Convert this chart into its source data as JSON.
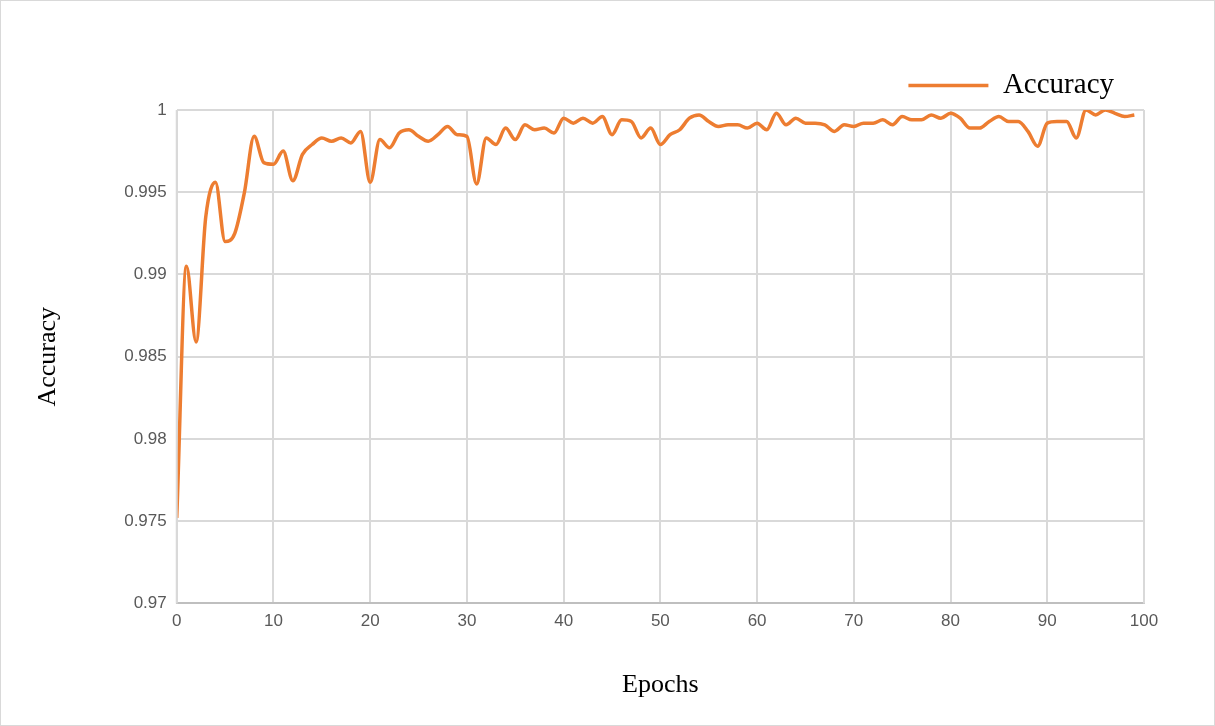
{
  "chart_data": {
    "type": "line",
    "xlabel": "Epochs",
    "ylabel": "Accuracy",
    "x": [
      0,
      1,
      2,
      3,
      4,
      5,
      6,
      7,
      8,
      9,
      10,
      11,
      12,
      13,
      14,
      15,
      16,
      17,
      18,
      19,
      20,
      21,
      22,
      23,
      24,
      25,
      26,
      27,
      28,
      29,
      30,
      31,
      32,
      33,
      34,
      35,
      36,
      37,
      38,
      39,
      40,
      41,
      42,
      43,
      44,
      45,
      46,
      47,
      48,
      49,
      50,
      51,
      52,
      53,
      54,
      55,
      56,
      57,
      58,
      59,
      60,
      61,
      62,
      63,
      64,
      65,
      66,
      67,
      68,
      69,
      70,
      71,
      72,
      73,
      74,
      75,
      76,
      77,
      78,
      79,
      80,
      81,
      82,
      83,
      84,
      85,
      86,
      87,
      88,
      89,
      90,
      91,
      92,
      93,
      94,
      95,
      96,
      97,
      98,
      99
    ],
    "series": [
      {
        "name": "Accuracy",
        "color": "#ed7d31",
        "values": [
          0.9752,
          0.9905,
          0.9859,
          0.9935,
          0.9956,
          0.992,
          0.9925,
          0.995,
          0.9984,
          0.9968,
          0.9967,
          0.9975,
          0.9957,
          0.9973,
          0.9979,
          0.9983,
          0.9981,
          0.9983,
          0.998,
          0.9987,
          0.9956,
          0.9982,
          0.9977,
          0.9986,
          0.9988,
          0.9984,
          0.9981,
          0.9985,
          0.999,
          0.9985,
          0.9984,
          0.9955,
          0.9983,
          0.9979,
          0.9989,
          0.9982,
          0.9991,
          0.9988,
          0.9989,
          0.9986,
          0.9995,
          0.9992,
          0.9995,
          0.9992,
          0.9996,
          0.9985,
          0.9994,
          0.9993,
          0.9983,
          0.9989,
          0.9979,
          0.9985,
          0.9988,
          0.9995,
          0.9997,
          0.9993,
          0.999,
          0.9991,
          0.9991,
          0.9989,
          0.9992,
          0.9988,
          0.9998,
          0.9991,
          0.9995,
          0.9992,
          0.9992,
          0.9991,
          0.9987,
          0.9991,
          0.999,
          0.9992,
          0.9992,
          0.9994,
          0.9991,
          0.9996,
          0.9994,
          0.9994,
          0.9997,
          0.9995,
          0.9998,
          0.9995,
          0.9989,
          0.9989,
          0.9993,
          0.9996,
          0.9993,
          0.9993,
          0.9987,
          0.9978,
          0.9992,
          0.9993,
          0.9993,
          0.9983,
          1.0,
          0.9997,
          1.0,
          0.9998,
          0.9996,
          0.9997
        ]
      }
    ],
    "xlim": [
      0,
      100
    ],
    "xticks": [
      0,
      10,
      20,
      30,
      40,
      50,
      60,
      70,
      80,
      90,
      100
    ],
    "ylim": [
      0.97,
      1
    ],
    "yticks": [
      0.97,
      0.975,
      0.98,
      0.985,
      0.99,
      0.995,
      1
    ],
    "grid": true,
    "legend": "top right",
    "marker": "none",
    "line_style": "solid"
  }
}
